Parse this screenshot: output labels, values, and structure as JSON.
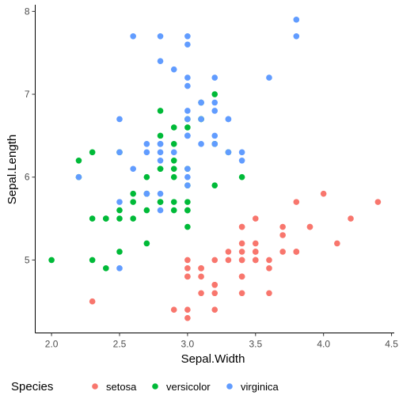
{
  "chart_data": {
    "type": "scatter",
    "xlabel": "Sepal.Width",
    "ylabel": "Sepal.Length",
    "xlim": [
      1.88,
      4.52
    ],
    "ylim": [
      4.12,
      8.08
    ],
    "x_ticks": [
      2.0,
      2.5,
      3.0,
      3.5,
      4.0,
      4.5
    ],
    "x_tick_labels": [
      "2.0",
      "2.5",
      "3.0",
      "3.5",
      "4.0",
      "4.5"
    ],
    "y_ticks": [
      5,
      6,
      7,
      8
    ],
    "y_tick_labels": [
      "5",
      "6",
      "7",
      "8"
    ],
    "grid": false,
    "legend": {
      "title": "Species",
      "position": "bottom"
    },
    "series": [
      {
        "name": "setosa",
        "color": "#F8766D",
        "points": [
          [
            3.5,
            5.1
          ],
          [
            3.0,
            4.9
          ],
          [
            3.2,
            4.7
          ],
          [
            3.1,
            4.6
          ],
          [
            3.6,
            5.0
          ],
          [
            3.9,
            5.4
          ],
          [
            3.4,
            4.6
          ],
          [
            3.4,
            5.0
          ],
          [
            2.9,
            4.4
          ],
          [
            3.1,
            4.9
          ],
          [
            3.7,
            5.4
          ],
          [
            3.4,
            4.8
          ],
          [
            3.0,
            4.8
          ],
          [
            3.0,
            4.3
          ],
          [
            4.0,
            5.8
          ],
          [
            4.4,
            5.7
          ],
          [
            3.9,
            5.4
          ],
          [
            3.5,
            5.1
          ],
          [
            3.8,
            5.7
          ],
          [
            3.8,
            5.1
          ],
          [
            3.4,
            5.4
          ],
          [
            3.7,
            5.1
          ],
          [
            3.6,
            4.6
          ],
          [
            3.3,
            5.1
          ],
          [
            3.4,
            4.8
          ],
          [
            3.0,
            5.0
          ],
          [
            3.4,
            5.0
          ],
          [
            3.5,
            5.2
          ],
          [
            3.4,
            5.2
          ],
          [
            3.2,
            4.7
          ],
          [
            3.1,
            4.8
          ],
          [
            3.4,
            5.4
          ],
          [
            4.1,
            5.2
          ],
          [
            4.2,
            5.5
          ],
          [
            3.1,
            4.9
          ],
          [
            3.2,
            5.0
          ],
          [
            3.5,
            5.5
          ],
          [
            3.6,
            4.9
          ],
          [
            3.0,
            4.4
          ],
          [
            3.4,
            5.1
          ],
          [
            3.5,
            5.0
          ],
          [
            2.3,
            4.5
          ],
          [
            3.2,
            4.4
          ],
          [
            3.5,
            5.0
          ],
          [
            3.8,
            5.1
          ],
          [
            3.0,
            4.8
          ],
          [
            3.8,
            5.1
          ],
          [
            3.2,
            4.6
          ],
          [
            3.7,
            5.3
          ],
          [
            3.3,
            5.0
          ]
        ]
      },
      {
        "name": "versicolor",
        "color": "#00BA38",
        "points": [
          [
            3.2,
            7.0
          ],
          [
            3.2,
            6.4
          ],
          [
            3.1,
            6.9
          ],
          [
            2.3,
            5.5
          ],
          [
            2.8,
            6.5
          ],
          [
            2.8,
            5.7
          ],
          [
            3.3,
            6.3
          ],
          [
            2.4,
            4.9
          ],
          [
            2.9,
            6.6
          ],
          [
            2.7,
            5.2
          ],
          [
            2.0,
            5.0
          ],
          [
            3.0,
            5.9
          ],
          [
            2.2,
            6.0
          ],
          [
            2.9,
            6.1
          ],
          [
            2.9,
            5.6
          ],
          [
            3.1,
            6.7
          ],
          [
            3.0,
            5.6
          ],
          [
            2.7,
            5.8
          ],
          [
            2.2,
            6.2
          ],
          [
            2.5,
            5.6
          ],
          [
            3.2,
            5.9
          ],
          [
            2.8,
            6.1
          ],
          [
            2.5,
            6.3
          ],
          [
            2.8,
            6.1
          ],
          [
            2.9,
            6.4
          ],
          [
            3.0,
            6.6
          ],
          [
            2.8,
            6.8
          ],
          [
            3.0,
            6.7
          ],
          [
            2.9,
            6.0
          ],
          [
            2.6,
            5.7
          ],
          [
            2.4,
            5.5
          ],
          [
            2.4,
            5.5
          ],
          [
            2.7,
            5.8
          ],
          [
            2.7,
            6.0
          ],
          [
            3.0,
            5.4
          ],
          [
            3.4,
            6.0
          ],
          [
            3.1,
            6.7
          ],
          [
            2.3,
            6.3
          ],
          [
            3.0,
            5.6
          ],
          [
            2.5,
            5.5
          ],
          [
            2.6,
            5.5
          ],
          [
            3.0,
            6.1
          ],
          [
            2.6,
            5.8
          ],
          [
            2.3,
            5.0
          ],
          [
            2.7,
            5.6
          ],
          [
            3.0,
            5.7
          ],
          [
            2.9,
            5.7
          ],
          [
            2.9,
            6.2
          ],
          [
            2.5,
            5.1
          ],
          [
            2.8,
            5.7
          ]
        ]
      },
      {
        "name": "virginica",
        "color": "#619CFF",
        "points": [
          [
            3.3,
            6.3
          ],
          [
            2.7,
            5.8
          ],
          [
            3.0,
            7.1
          ],
          [
            2.9,
            6.3
          ],
          [
            3.0,
            6.5
          ],
          [
            3.0,
            7.6
          ],
          [
            2.5,
            4.9
          ],
          [
            2.9,
            7.3
          ],
          [
            2.5,
            6.7
          ],
          [
            3.6,
            7.2
          ],
          [
            3.2,
            6.5
          ],
          [
            2.7,
            6.4
          ],
          [
            3.0,
            6.8
          ],
          [
            2.5,
            5.7
          ],
          [
            2.8,
            5.8
          ],
          [
            3.2,
            6.4
          ],
          [
            3.0,
            6.5
          ],
          [
            3.8,
            7.7
          ],
          [
            2.6,
            7.7
          ],
          [
            2.2,
            6.0
          ],
          [
            3.2,
            6.9
          ],
          [
            2.8,
            5.6
          ],
          [
            2.8,
            7.7
          ],
          [
            2.7,
            6.3
          ],
          [
            3.3,
            6.7
          ],
          [
            3.2,
            7.2
          ],
          [
            2.8,
            6.2
          ],
          [
            3.0,
            6.1
          ],
          [
            2.8,
            6.4
          ],
          [
            3.0,
            7.2
          ],
          [
            2.8,
            7.4
          ],
          [
            3.8,
            7.9
          ],
          [
            2.8,
            6.4
          ],
          [
            2.8,
            6.3
          ],
          [
            2.6,
            6.1
          ],
          [
            3.0,
            7.7
          ],
          [
            3.4,
            6.3
          ],
          [
            3.1,
            6.4
          ],
          [
            3.0,
            6.0
          ],
          [
            3.1,
            6.9
          ],
          [
            3.1,
            6.7
          ],
          [
            3.1,
            6.9
          ],
          [
            2.7,
            5.8
          ],
          [
            3.2,
            6.8
          ],
          [
            3.3,
            6.7
          ],
          [
            3.0,
            6.7
          ],
          [
            2.5,
            6.3
          ],
          [
            3.0,
            6.5
          ],
          [
            3.4,
            6.2
          ],
          [
            3.0,
            5.9
          ]
        ]
      }
    ]
  }
}
